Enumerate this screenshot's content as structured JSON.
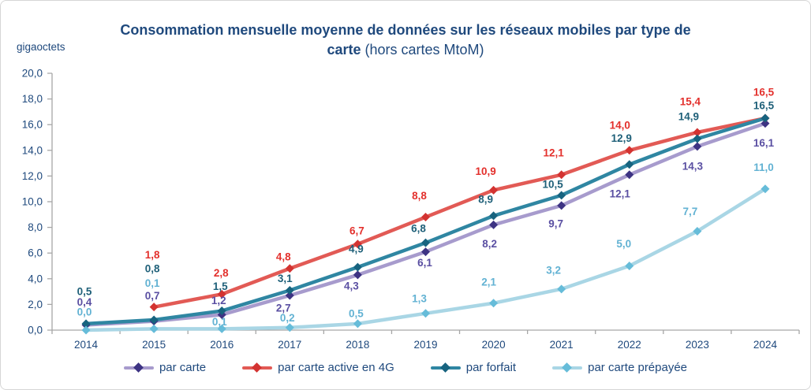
{
  "title": {
    "line1": "Consommation mensuelle moyenne de données sur les réseaux mobiles par type de",
    "line2_bold": "carte",
    "line2_rest": " (hors cartes MtoM)"
  },
  "chart_data": {
    "type": "line",
    "title": "Consommation mensuelle moyenne de données sur les réseaux mobiles par type de carte (hors cartes MtoM)",
    "unit_label": "gigaoctets",
    "x": [
      2014,
      2015,
      2016,
      2017,
      2018,
      2019,
      2020,
      2021,
      2022,
      2023,
      2024
    ],
    "ylim": [
      0,
      20
    ],
    "ytick_step": 2,
    "grid": false,
    "legend_position": "bottom",
    "decimal_separator": ",",
    "axis_color": "#A6A6A6",
    "text_color": "#1F497D",
    "series": [
      {
        "name": "par carte",
        "values": [
          0.4,
          0.7,
          1.2,
          2.7,
          4.3,
          6.1,
          8.2,
          9.7,
          12.1,
          14.3,
          16.1
        ],
        "line_color": "#A79BCD",
        "marker_color": "#3D3383",
        "label_color": "#5A4FA2"
      },
      {
        "name": "par carte active en 4G",
        "values": [
          null,
          1.8,
          2.8,
          4.8,
          6.7,
          8.8,
          10.9,
          12.1,
          14.0,
          15.4,
          16.5
        ],
        "line_color": "#E25A55",
        "marker_color": "#D33331",
        "label_color": "#E3302C"
      },
      {
        "name": "par forfait",
        "values": [
          0.5,
          0.8,
          1.5,
          3.1,
          4.9,
          6.8,
          8.9,
          10.5,
          12.9,
          14.9,
          16.5
        ],
        "line_color": "#2F86A2",
        "marker_color": "#17637F",
        "label_color": "#1F6079"
      },
      {
        "name": "par carte prépayée",
        "values": [
          0.0,
          0.1,
          0.1,
          0.2,
          0.5,
          1.3,
          2.1,
          3.2,
          5.0,
          7.7,
          11.0
        ],
        "line_color": "#A9D6E5",
        "marker_color": "#66BCD9",
        "label_color": "#62B2D3"
      }
    ]
  }
}
